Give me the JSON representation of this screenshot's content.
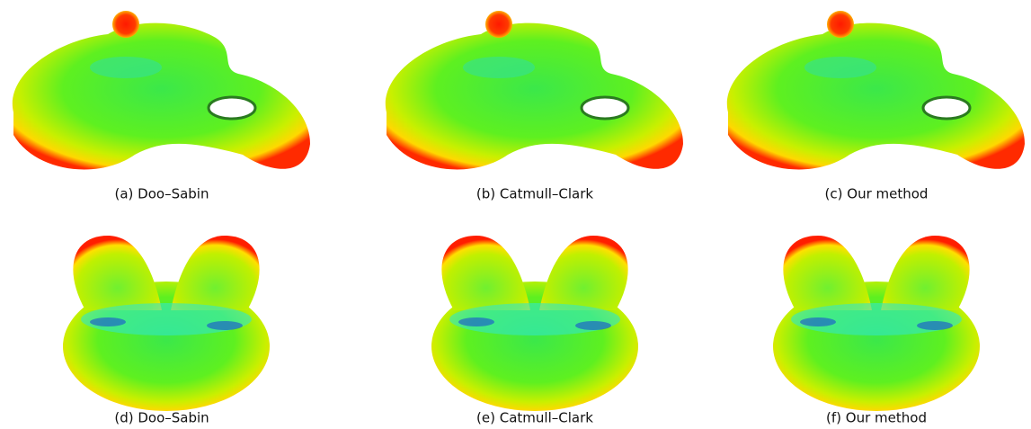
{
  "panels": [
    {
      "caption": "(a) Doo–Sabin"
    },
    {
      "caption": "(b) Catmull–Clark"
    },
    {
      "caption": "(c) Our method"
    },
    {
      "caption": "(d) Doo–Sabin"
    },
    {
      "caption": "(e) Catmull–Clark"
    },
    {
      "caption": "(f) Our method"
    }
  ]
}
